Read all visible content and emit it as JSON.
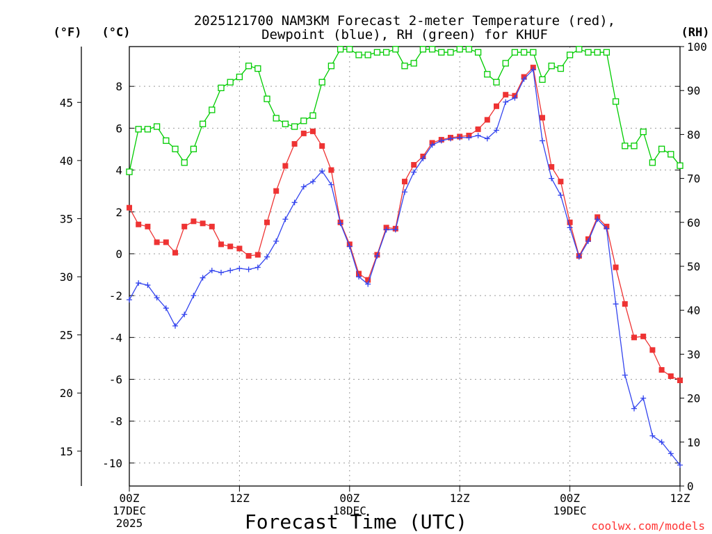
{
  "chart_data": {
    "type": "line",
    "title_lines": [
      "2025121700 NAM3KM Forecast 2-meter Temperature (red),",
      "Dewpoint (blue), RH (green) for KHUF"
    ],
    "xlabel": "Forecast Time (UTC)",
    "credit": "coolwx.com/models",
    "unit_labels": {
      "fahrenheit": "(°F)",
      "celsius": "(°C)",
      "rh": "(RH)"
    },
    "x_hours": [
      0,
      1,
      2,
      3,
      4,
      5,
      6,
      7,
      8,
      9,
      10,
      11,
      12,
      13,
      14,
      15,
      16,
      17,
      18,
      19,
      20,
      21,
      22,
      23,
      24,
      25,
      26,
      27,
      28,
      29,
      30,
      31,
      32,
      33,
      34,
      35,
      36,
      37,
      38,
      39,
      40,
      41,
      42,
      43,
      44,
      45,
      46,
      47,
      48,
      49,
      50,
      51,
      52,
      53,
      54,
      55,
      56,
      57,
      58,
      59,
      60
    ],
    "x_ticks": [
      {
        "hour": 0,
        "lines": [
          "00Z",
          "17DEC",
          "2025"
        ]
      },
      {
        "hour": 12,
        "lines": [
          "12Z"
        ]
      },
      {
        "hour": 24,
        "lines": [
          "00Z",
          "18DEC"
        ]
      },
      {
        "hour": 36,
        "lines": [
          "12Z"
        ]
      },
      {
        "hour": 48,
        "lines": [
          "00Z",
          "19DEC"
        ]
      },
      {
        "hour": 60,
        "lines": [
          "12Z"
        ]
      }
    ],
    "celsius_axis": {
      "range": [
        -11.1,
        9.9
      ],
      "ticks": [
        -10,
        -8,
        -6,
        -4,
        -2,
        0,
        2,
        4,
        6,
        8
      ]
    },
    "fahrenheit_axis": {
      "range": [
        12.0,
        49.8
      ],
      "ticks": [
        15,
        20,
        25,
        30,
        35,
        40,
        45
      ]
    },
    "rh_axis": {
      "range": [
        0,
        100
      ],
      "ticks": [
        0,
        10,
        20,
        30,
        40,
        50,
        60,
        70,
        80,
        90,
        100
      ]
    },
    "grid": true,
    "series": [
      {
        "name": "Temperature",
        "unit": "°C",
        "color": "#ee3333",
        "marker": "filled-square",
        "values": [
          2.2,
          1.4,
          1.3,
          0.55,
          0.55,
          0.05,
          1.3,
          1.55,
          1.45,
          1.3,
          0.45,
          0.35,
          0.25,
          -0.1,
          -0.05,
          1.5,
          3.0,
          4.2,
          5.25,
          5.75,
          5.85,
          5.15,
          4.0,
          1.5,
          0.45,
          -0.95,
          -1.25,
          -0.05,
          1.25,
          1.2,
          3.45,
          4.25,
          4.65,
          5.3,
          5.45,
          5.55,
          5.6,
          5.65,
          5.95,
          6.4,
          7.05,
          7.6,
          7.55,
          8.45,
          8.9,
          6.5,
          4.15,
          3.45,
          1.5,
          -0.1,
          0.7,
          1.75,
          1.3,
          -0.65,
          -2.4,
          -4.0,
          -3.95,
          -4.6,
          -5.55,
          -5.85,
          -6.05
        ]
      },
      {
        "name": "Dewpoint",
        "unit": "°C",
        "color": "#3344ee",
        "marker": "plus",
        "values": [
          -2.2,
          -1.4,
          -1.5,
          -2.1,
          -2.6,
          -3.45,
          -2.9,
          -2.0,
          -1.15,
          -0.8,
          -0.9,
          -0.8,
          -0.7,
          -0.75,
          -0.65,
          -0.15,
          0.6,
          1.65,
          2.45,
          3.2,
          3.45,
          3.95,
          3.3,
          1.45,
          0.35,
          -1.1,
          -1.45,
          -0.1,
          1.15,
          1.15,
          2.95,
          3.9,
          4.55,
          5.2,
          5.4,
          5.5,
          5.55,
          5.55,
          5.65,
          5.5,
          5.9,
          7.25,
          7.45,
          8.35,
          8.8,
          5.4,
          3.6,
          2.8,
          1.25,
          -0.15,
          0.6,
          1.65,
          1.2,
          -2.4,
          -5.8,
          -7.4,
          -6.9,
          -8.7,
          -9.0,
          -9.55,
          -10.1
        ]
      },
      {
        "name": "RH",
        "unit": "%",
        "color": "#00cc00",
        "marker": "open-square",
        "values": [
          71.5,
          81.2,
          81.2,
          81.8,
          78.6,
          76.7,
          73.6,
          76.7,
          82.4,
          85.6,
          90.6,
          91.9,
          93.1,
          95.6,
          95.0,
          88.1,
          83.7,
          82.4,
          81.8,
          83.1,
          84.3,
          91.9,
          95.6,
          99.4,
          99.4,
          98.1,
          98.1,
          98.7,
          98.7,
          99.4,
          95.6,
          96.2,
          99.4,
          99.4,
          98.7,
          98.7,
          99.4,
          99.4,
          98.7,
          93.7,
          91.9,
          96.2,
          98.7,
          98.7,
          98.7,
          92.5,
          95.6,
          95.0,
          98.1,
          99.4,
          98.7,
          98.7,
          98.7,
          87.5,
          77.4,
          77.4,
          80.6,
          73.6,
          76.7,
          75.5,
          72.9
        ]
      }
    ]
  }
}
